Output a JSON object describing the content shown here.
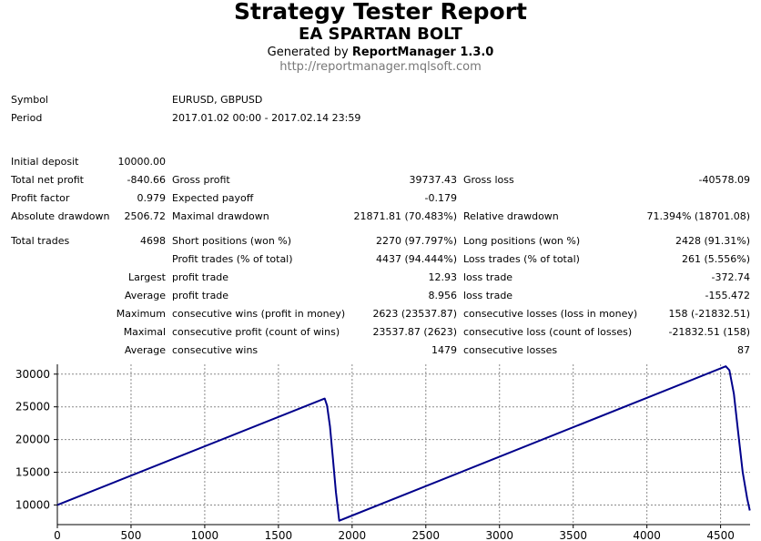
{
  "header": {
    "title": "Strategy Tester Report",
    "subtitle": "EA SPARTAN BOLT",
    "generated_prefix": "Generated by ",
    "generated_app": "ReportManager 1.3.0",
    "url": "http://reportmanager.mqlsoft.com"
  },
  "info": {
    "symbol_label": "Symbol",
    "symbol_value": "EURUSD, GBPUSD",
    "period_label": "Period",
    "period_value": "2017.01.02 00:00 - 2017.02.14 23:59"
  },
  "stats": {
    "initial_deposit_label": "Initial deposit",
    "initial_deposit": "10000.00",
    "total_net_profit_label": "Total net profit",
    "total_net_profit": "-840.66",
    "gross_profit_label": "Gross profit",
    "gross_profit": "39737.43",
    "gross_loss_label": "Gross loss",
    "gross_loss": "-40578.09",
    "profit_factor_label": "Profit factor",
    "profit_factor": "0.979",
    "expected_payoff_label": "Expected payoff",
    "expected_payoff": "-0.179",
    "absolute_drawdown_label": "Absolute drawdown",
    "absolute_drawdown": "2506.72",
    "maximal_drawdown_label": "Maximal drawdown",
    "maximal_drawdown": "21871.81 (70.483%)",
    "relative_drawdown_label": "Relative drawdown",
    "relative_drawdown": "71.394% (18701.08)",
    "total_trades_label": "Total trades",
    "total_trades": "4698",
    "short_positions_label": "Short positions (won %)",
    "short_positions": "2270 (97.797%)",
    "long_positions_label": "Long positions (won %)",
    "long_positions": "2428 (91.31%)",
    "profit_trades_label": "Profit trades (% of total)",
    "profit_trades": "4437 (94.444%)",
    "loss_trades_label": "Loss trades (% of total)",
    "loss_trades": "261 (5.556%)",
    "largest_label": "Largest",
    "largest_profit_label": "profit trade",
    "largest_profit": "12.93",
    "largest_loss_label": "loss trade",
    "largest_loss": "-372.74",
    "average_label": "Average",
    "average_profit_label": "profit trade",
    "average_profit": "8.956",
    "average_loss_label": "loss trade",
    "average_loss": "-155.472",
    "maximum_label": "Maximum",
    "max_cons_wins_label": "consecutive wins (profit in money)",
    "max_cons_wins": "2623 (23537.87)",
    "max_cons_losses_label": "consecutive losses (loss in money)",
    "max_cons_losses": "158 (-21832.51)",
    "maximal_label": "Maximal",
    "maximal_cons_profit_label": "consecutive profit (count of wins)",
    "maximal_cons_profit": "23537.87 (2623)",
    "maximal_cons_loss_label": "consecutive loss (count of losses)",
    "maximal_cons_loss": "-21832.51 (158)",
    "average2_label": "Average",
    "avg_cons_wins_label": "consecutive wins",
    "avg_cons_wins": "1479",
    "avg_cons_losses_label": "consecutive losses",
    "avg_cons_losses": "87"
  },
  "chart_data": {
    "type": "line",
    "title": "",
    "xlabel": "",
    "ylabel": "",
    "xlim": [
      0,
      4700
    ],
    "ylim": [
      7000,
      31500
    ],
    "xticks": [
      0,
      500,
      1000,
      1500,
      2000,
      2500,
      3000,
      3500,
      4000,
      4500
    ],
    "yticks": [
      10000,
      15000,
      20000,
      25000,
      30000
    ],
    "grid": true,
    "line_color": "#00008b",
    "series": [
      {
        "x": [
          0,
          1814,
          1830,
          1850,
          1870,
          1890,
          1910,
          1913,
          4535,
          4560,
          4590,
          4620,
          4650,
          4680,
          4698
        ],
        "y": [
          10000,
          26260,
          25200,
          22000,
          17000,
          12000,
          8000,
          7600,
          31200,
          30600,
          27000,
          21000,
          15000,
          11000,
          9159
        ]
      }
    ]
  }
}
